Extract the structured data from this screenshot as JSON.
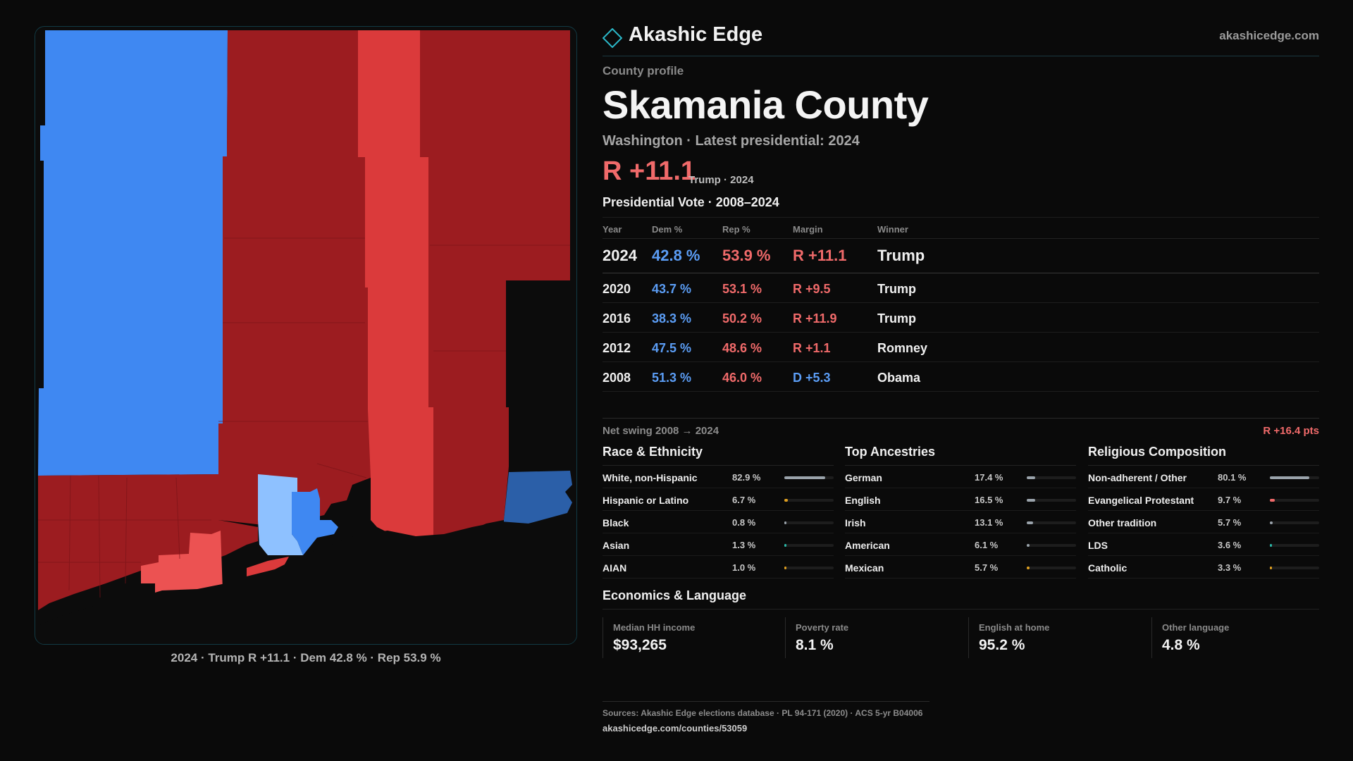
{
  "brand": {
    "name": "Akashic Edge",
    "url": "akashicedge.com"
  },
  "profile": {
    "eyebrow": "County profile",
    "county": "Skamania County",
    "subtitle": "Washington · Latest presidential: 2024",
    "margin": "R +11.1",
    "margin_note": "Trump · 2024"
  },
  "colors": {
    "dem": "#5b9df5",
    "rep": "#f06a6a",
    "rep_dark": "#9c1c20",
    "rep_mid": "#db3a3b",
    "dem_mid": "#3f88f2",
    "dem_light": "#8ec1ff",
    "dem_dark": "#2b5fa8",
    "accent": "#1b3a42"
  },
  "vote_table": {
    "title": "Presidential Vote · 2008–2024",
    "headers": {
      "year": "Year",
      "dem": "Dem %",
      "rep": "Rep %",
      "margin": "Margin",
      "winner": "Winner"
    },
    "rows": [
      {
        "year": "2024",
        "dem": "42.8 %",
        "rep": "53.9 %",
        "margin": "R +11.1",
        "winner": "Trump"
      },
      {
        "year": "2020",
        "dem": "43.7 %",
        "rep": "53.1 %",
        "margin": "R +9.5",
        "winner": "Trump"
      },
      {
        "year": "2016",
        "dem": "38.3 %",
        "rep": "50.2 %",
        "margin": "R +11.9",
        "winner": "Trump"
      },
      {
        "year": "2012",
        "dem": "47.5 %",
        "rep": "48.6 %",
        "margin": "R +1.1",
        "winner": "Romney"
      },
      {
        "year": "2008",
        "dem": "51.3 %",
        "rep": "46.0 %",
        "margin": "D +5.3",
        "winner": "Obama"
      }
    ]
  },
  "swing": {
    "label": "Net swing 2008 → 2024",
    "value": "R +16.4 pts"
  },
  "race": {
    "title": "Race & Ethnicity",
    "rows": [
      {
        "label": "White, non-Hispanic",
        "pct": "82.9 %",
        "value": 82.9,
        "color": "#9aa3ab"
      },
      {
        "label": "Hispanic or Latino",
        "pct": "6.7 %",
        "value": 6.7,
        "color": "#e0a020"
      },
      {
        "label": "Black",
        "pct": "0.8 %",
        "value": 0.8,
        "color": "#9aa3ab"
      },
      {
        "label": "Asian",
        "pct": "1.3 %",
        "value": 1.3,
        "color": "#2bb8a8"
      },
      {
        "label": "AIAN",
        "pct": "1.0 %",
        "value": 1.0,
        "color": "#e0a020"
      }
    ]
  },
  "ancestry": {
    "title": "Top Ancestries",
    "rows": [
      {
        "label": "German",
        "pct": "17.4 %",
        "value": 17.4,
        "color": "#9aa3ab"
      },
      {
        "label": "English",
        "pct": "16.5 %",
        "value": 16.5,
        "color": "#9aa3ab"
      },
      {
        "label": "Irish",
        "pct": "13.1 %",
        "value": 13.1,
        "color": "#9aa3ab"
      },
      {
        "label": "American",
        "pct": "6.1 %",
        "value": 6.1,
        "color": "#9aa3ab"
      },
      {
        "label": "Mexican",
        "pct": "5.7 %",
        "value": 5.7,
        "color": "#e0a020"
      }
    ]
  },
  "religion": {
    "title": "Religious Composition",
    "rows": [
      {
        "label": "Non-adherent / Other",
        "pct": "80.1 %",
        "value": 80.1,
        "color": "#9aa3ab"
      },
      {
        "label": "Evangelical Protestant",
        "pct": "9.7 %",
        "value": 9.7,
        "color": "#f06a6a"
      },
      {
        "label": "Other tradition",
        "pct": "5.7 %",
        "value": 5.7,
        "color": "#9aa3ab"
      },
      {
        "label": "LDS",
        "pct": "3.6 %",
        "value": 3.6,
        "color": "#2bb8a8"
      },
      {
        "label": "Catholic",
        "pct": "3.3 %",
        "value": 3.3,
        "color": "#e0a020"
      }
    ]
  },
  "economics": {
    "title": "Economics & Language",
    "items": [
      {
        "label": "Median HH income",
        "value": "$93,265"
      },
      {
        "label": "Poverty rate",
        "value": "8.1 %"
      },
      {
        "label": "English at home",
        "value": "95.2 %"
      },
      {
        "label": "Other language",
        "value": "4.8 %"
      }
    ]
  },
  "map_caption": "2024 · Trump R +11.1 · Dem 42.8 % · Rep 53.9 %",
  "footer": {
    "sources": "Sources: Akashic Edge elections database · PL 94-171 (2020) · ACS 5-yr B04006",
    "url": "akashicedge.com/counties/53059"
  }
}
